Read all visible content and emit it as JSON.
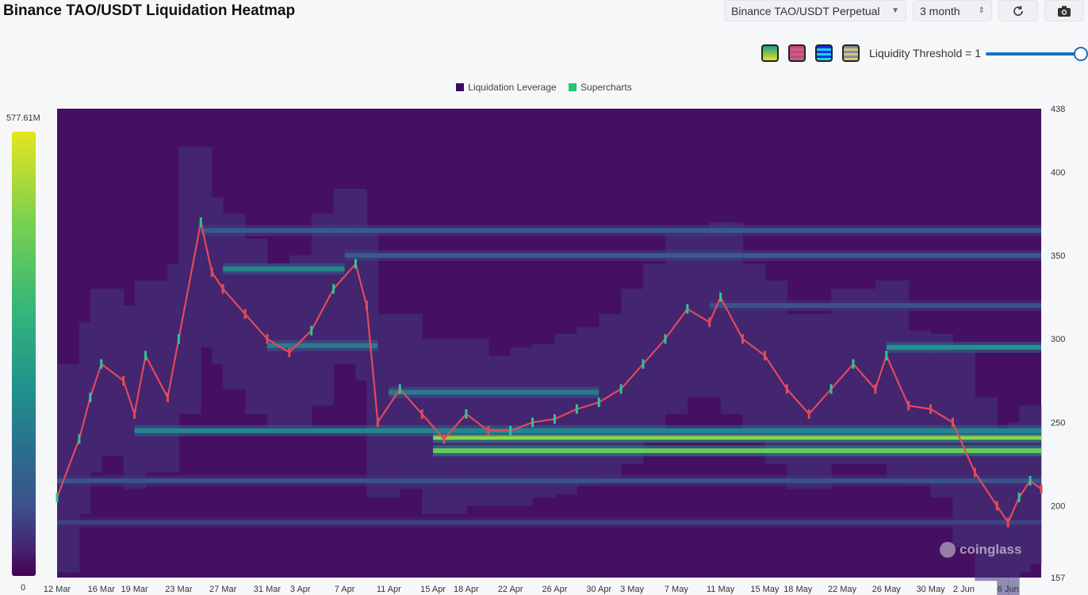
{
  "header": {
    "title": "Binance TAO/USDT Liquidation Heatmap",
    "symbol_select": "Binance TAO/USDT Perpetual",
    "range_select": "3 month",
    "refresh_icon": "refresh-icon",
    "camera_icon": "camera-icon"
  },
  "palette": {
    "swatches": [
      {
        "name": "viridis",
        "from": "#1f9e89",
        "to": "#e6e41d"
      },
      {
        "name": "red-pink",
        "from": "#d4456b",
        "to": "#c06090"
      },
      {
        "name": "blue-rainbow",
        "from": "#1432f0",
        "to": "#1cd0e0"
      },
      {
        "name": "grey-gold",
        "from": "#8090a0",
        "to": "#d9c27a"
      }
    ],
    "threshold_label": "Liquidity Threshold = 1",
    "threshold_value": 1
  },
  "colorbar": {
    "max_label": "577.61M",
    "min_label": "0"
  },
  "chart_data": {
    "type": "heatmap",
    "title": "Binance TAO/USDT Liquidation Heatmap",
    "legend": [
      {
        "name": "Liquidation Leverage",
        "color": "#3a0c5c"
      },
      {
        "name": "Supercharts",
        "color": "#22c77a"
      }
    ],
    "x_ticks": [
      "12 Mar",
      "16 Mar",
      "19 Mar",
      "23 Mar",
      "27 Mar",
      "31 Mar",
      "3 Apr",
      "7 Apr",
      "11 Apr",
      "15 Apr",
      "18 Apr",
      "22 Apr",
      "26 Apr",
      "30 Apr",
      "3 May",
      "7 May",
      "11 May",
      "15 May",
      "18 May",
      "22 May",
      "26 May",
      "30 May",
      "2 Jun",
      "6 Jun"
    ],
    "y_ticks": [
      157,
      200,
      250,
      300,
      350,
      400,
      438
    ],
    "ylim": [
      157,
      438
    ],
    "colorbar_range": [
      "0",
      "577.61M"
    ],
    "price_path": [
      [
        "12 Mar",
        205
      ],
      [
        "14 Mar",
        240
      ],
      [
        "15 Mar",
        265
      ],
      [
        "16 Mar",
        285
      ],
      [
        "18 Mar",
        275
      ],
      [
        "19 Mar",
        255
      ],
      [
        "20 Mar",
        290
      ],
      [
        "22 Mar",
        265
      ],
      [
        "23 Mar",
        300
      ],
      [
        "25 Mar",
        370
      ],
      [
        "26 Mar",
        340
      ],
      [
        "27 Mar",
        330
      ],
      [
        "29 Mar",
        315
      ],
      [
        "31 Mar",
        300
      ],
      [
        "2 Apr",
        292
      ],
      [
        "4 Apr",
        305
      ],
      [
        "6 Apr",
        330
      ],
      [
        "8 Apr",
        345
      ],
      [
        "9 Apr",
        320
      ],
      [
        "10 Apr",
        250
      ],
      [
        "12 Apr",
        270
      ],
      [
        "14 Apr",
        255
      ],
      [
        "16 Apr",
        240
      ],
      [
        "18 Apr",
        255
      ],
      [
        "20 Apr",
        245
      ],
      [
        "22 Apr",
        245
      ],
      [
        "24 Apr",
        250
      ],
      [
        "26 Apr",
        252
      ],
      [
        "28 Apr",
        258
      ],
      [
        "30 Apr",
        262
      ],
      [
        "2 May",
        270
      ],
      [
        "4 May",
        285
      ],
      [
        "6 May",
        300
      ],
      [
        "8 May",
        318
      ],
      [
        "10 May",
        310
      ],
      [
        "11 May",
        325
      ],
      [
        "13 May",
        300
      ],
      [
        "15 May",
        290
      ],
      [
        "17 May",
        270
      ],
      [
        "19 May",
        255
      ],
      [
        "21 May",
        270
      ],
      [
        "23 May",
        285
      ],
      [
        "25 May",
        270
      ],
      [
        "26 May",
        290
      ],
      [
        "28 May",
        260
      ],
      [
        "30 May",
        258
      ],
      [
        "1 Jun",
        250
      ],
      [
        "3 Jun",
        220
      ],
      [
        "5 Jun",
        200
      ],
      [
        "6 Jun",
        190
      ],
      [
        "7 Jun",
        205
      ],
      [
        "8 Jun",
        215
      ],
      [
        "9 Jun",
        210
      ]
    ],
    "liquidation_bands": [
      {
        "start": "15 Apr",
        "end": "9 Jun",
        "price": 241,
        "intensity": 0.9
      },
      {
        "start": "15 Apr",
        "end": "9 Jun",
        "price": 233,
        "intensity": 0.85
      },
      {
        "start": "19 Mar",
        "end": "9 Jun",
        "price": 245,
        "intensity": 0.55
      },
      {
        "start": "26 May",
        "end": "9 Jun",
        "price": 295,
        "intensity": 0.6
      },
      {
        "start": "27 Mar",
        "end": "7 Apr",
        "price": 342,
        "intensity": 0.55
      },
      {
        "start": "31 Mar",
        "end": "10 Apr",
        "price": 296,
        "intensity": 0.5
      },
      {
        "start": "11 Apr",
        "end": "30 Apr",
        "price": 268,
        "intensity": 0.5
      },
      {
        "start": "25 Mar",
        "end": "9 Jun",
        "price": 365,
        "intensity": 0.35
      },
      {
        "start": "7 Apr",
        "end": "9 Jun",
        "price": 350,
        "intensity": 0.35
      },
      {
        "start": "10 May",
        "end": "9 Jun",
        "price": 320,
        "intensity": 0.3
      },
      {
        "start": "12 Mar",
        "end": "9 Jun",
        "price": 215,
        "intensity": 0.3
      },
      {
        "start": "12 Mar",
        "end": "9 Jun",
        "price": 190,
        "intensity": 0.25
      }
    ]
  },
  "watermark": "coinglass"
}
